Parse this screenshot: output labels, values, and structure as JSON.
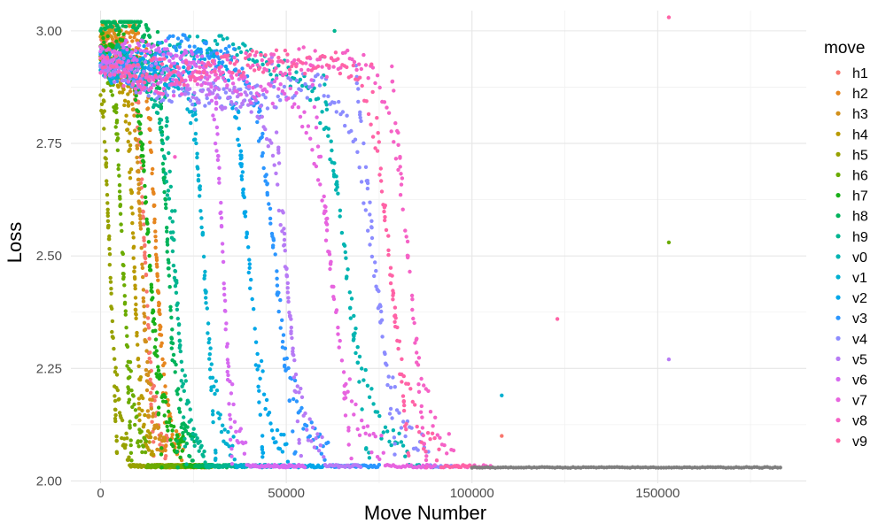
{
  "chart_data": {
    "type": "scatter",
    "xlabel": "Move Number",
    "ylabel": "Loss",
    "xlim": [
      -8000,
      190000
    ],
    "ylim": [
      1.995,
      3.045
    ],
    "x_ticks": [
      0,
      50000,
      100000,
      150000
    ],
    "x_tick_labels": [
      "0",
      "50000",
      "100000",
      "150000"
    ],
    "y_ticks": [
      2.0,
      2.25,
      2.5,
      2.75,
      3.0
    ],
    "y_tick_labels": [
      "2.00",
      "2.25",
      "2.50",
      "2.75",
      "3.00"
    ],
    "grid": true,
    "legend": {
      "title": "move",
      "placement": "right"
    },
    "series": [
      {
        "name": "h1",
        "color": "#F8766D",
        "plateau": 2.95,
        "start": 0,
        "drop_center": 12000,
        "drop_width": 3000,
        "tail_end": 30000
      },
      {
        "name": "h2",
        "color": "#E6861F",
        "plateau": 2.98,
        "start": 0,
        "drop_center": 15000,
        "drop_width": 3500,
        "tail_end": 30000
      },
      {
        "name": "h3",
        "color": "#D2901B",
        "plateau": 2.99,
        "start": 0,
        "drop_center": 11000,
        "drop_width": 3000,
        "tail_end": 30000
      },
      {
        "name": "h4",
        "color": "#B99A00",
        "plateau": 2.96,
        "start": 0,
        "drop_center": 9000,
        "drop_width": 2500,
        "tail_end": 30000
      },
      {
        "name": "h5",
        "color": "#97A100",
        "plateau": 2.93,
        "start": 0,
        "drop_center": 2500,
        "drop_width": 2500,
        "tail_end": 30000
      },
      {
        "name": "h6",
        "color": "#6BAB00",
        "plateau": 2.95,
        "start": 0,
        "drop_center": 6000,
        "drop_width": 3000,
        "tail_end": 30000
      },
      {
        "name": "h7",
        "color": "#1AB019",
        "plateau": 2.98,
        "start": 0,
        "drop_center": 13000,
        "drop_width": 4500,
        "tail_end": 30000
      },
      {
        "name": "h8",
        "color": "#00B35B",
        "plateau": 3.01,
        "start": 0,
        "drop_center": 18000,
        "drop_width": 3500,
        "tail_end": 35000
      },
      {
        "name": "h9",
        "color": "#00B590",
        "plateau": 2.94,
        "start": 0,
        "drop_center": 20000,
        "drop_width": 4000,
        "tail_end": 40000
      },
      {
        "name": "v0",
        "color": "#00B4B1",
        "plateau": 2.93,
        "start": 0,
        "drop_center": 66000,
        "drop_width": 8000,
        "tail_end": 90000
      },
      {
        "name": "v1",
        "color": "#00B0D0",
        "plateau": 2.9,
        "start": 0,
        "drop_center": 28000,
        "drop_width": 4000,
        "tail_end": 50000
      },
      {
        "name": "v2",
        "color": "#00A7E9",
        "plateau": 2.92,
        "start": 0,
        "drop_center": 40000,
        "drop_width": 5000,
        "tail_end": 60000
      },
      {
        "name": "v3",
        "color": "#2B96FF",
        "plateau": 2.93,
        "start": 0,
        "drop_center": 47000,
        "drop_width": 7000,
        "tail_end": 75000
      },
      {
        "name": "v4",
        "color": "#8C8CFF",
        "plateau": 2.93,
        "start": 0,
        "drop_center": 74000,
        "drop_width": 7000,
        "tail_end": 95000
      },
      {
        "name": "v5",
        "color": "#B77BF5",
        "plateau": 2.93,
        "start": 0,
        "drop_center": 50000,
        "drop_width": 5000,
        "tail_end": 70000
      },
      {
        "name": "v6",
        "color": "#D66AF0",
        "plateau": 2.94,
        "start": 0,
        "drop_center": 33000,
        "drop_width": 3000,
        "tail_end": 55000
      },
      {
        "name": "v7",
        "color": "#E764DF",
        "plateau": 2.94,
        "start": 0,
        "drop_center": 62000,
        "drop_width": 7000,
        "tail_end": 90000
      },
      {
        "name": "v8",
        "color": "#F562C6",
        "plateau": 2.93,
        "start": 0,
        "drop_center": 83000,
        "drop_width": 6000,
        "tail_end": 105000
      },
      {
        "name": "v9",
        "color": "#FF63A6",
        "plateau": 2.92,
        "start": 0,
        "drop_center": 78000,
        "drop_width": 6500,
        "tail_end": 100000
      }
    ],
    "baseline": {
      "y": 2.03,
      "x_end": 183000
    },
    "tail": {
      "color": "#7F7F7F",
      "x_start": 100000,
      "x_end": 183000,
      "y": 2.03
    },
    "outliers": [
      {
        "series": "v9",
        "x": 153000,
        "y": 3.03
      },
      {
        "series": "h6",
        "x": 153000,
        "y": 2.53
      },
      {
        "series": "v5",
        "x": 153000,
        "y": 2.27
      },
      {
        "series": "v9",
        "x": 123000,
        "y": 2.36
      },
      {
        "series": "v1",
        "x": 108000,
        "y": 2.19
      },
      {
        "series": "h1",
        "x": 108000,
        "y": 2.1
      },
      {
        "series": "h9",
        "x": 63000,
        "y": 3.0
      },
      {
        "series": "v8",
        "x": 20000,
        "y": 2.72
      },
      {
        "series": "h9",
        "x": 20000,
        "y": 2.6
      }
    ]
  }
}
